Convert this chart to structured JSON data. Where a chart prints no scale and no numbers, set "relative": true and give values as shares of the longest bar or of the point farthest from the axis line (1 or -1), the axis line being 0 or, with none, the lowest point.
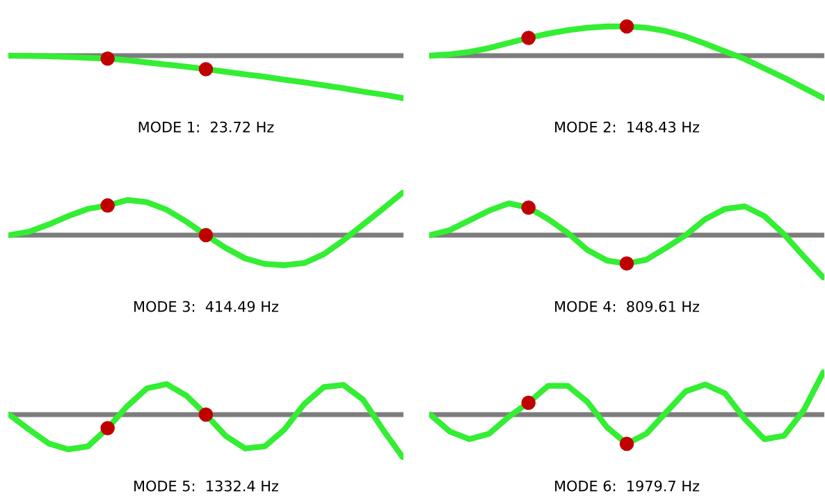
{
  "chart_data": [
    {
      "type": "line",
      "relative": true,
      "xlabel": "MODE 1:  23.72 Hz",
      "categories": [
        null,
        null,
        null,
        null,
        null,
        null,
        null,
        null,
        null,
        null,
        null,
        null,
        null,
        null,
        null,
        null,
        null,
        null,
        null,
        null,
        null
      ],
      "series": [
        {
          "color": "#33ee33",
          "values": [
            0,
            -0.005,
            -0.015,
            -0.03,
            -0.05,
            -0.07,
            -0.11,
            -0.16,
            -0.21,
            -0.26,
            -0.32,
            -0.38,
            -0.44,
            -0.5,
            -0.57,
            -0.63,
            -0.7,
            -0.77,
            -0.85,
            -0.92,
            -1
          ]
        }
      ]
    },
    {
      "type": "line",
      "relative": true,
      "xlabel": "MODE 2:  148.43 Hz",
      "categories": [
        null,
        null,
        null,
        null,
        null,
        null,
        null,
        null,
        null,
        null,
        null,
        null,
        null,
        null,
        null,
        null,
        null,
        null,
        null,
        null,
        null
      ],
      "series": [
        {
          "color": "#33ee33",
          "values": [
            0,
            0.03,
            0.09,
            0.18,
            0.3,
            0.42,
            0.52,
            0.6,
            0.66,
            0.69,
            0.69,
            0.66,
            0.58,
            0.45,
            0.28,
            0.1,
            -0.08,
            -0.3,
            -0.52,
            -0.76,
            -1
          ]
        }
      ]
    },
    {
      "type": "line",
      "relative": true,
      "xlabel": "MODE 3:  414.49 Hz",
      "categories": [
        null,
        null,
        null,
        null,
        null,
        null,
        null,
        null,
        null,
        null,
        null,
        null,
        null,
        null,
        null,
        null,
        null,
        null,
        null,
        null,
        null
      ],
      "series": [
        {
          "color": "#33ee33",
          "values": [
            0,
            0.08,
            0.25,
            0.45,
            0.62,
            0.7,
            0.83,
            0.78,
            0.6,
            0.32,
            0,
            -0.3,
            -0.55,
            -0.68,
            -0.71,
            -0.66,
            -0.45,
            -0.12,
            0.25,
            0.62,
            1
          ]
        }
      ]
    },
    {
      "type": "line",
      "relative": true,
      "xlabel": "MODE 4:  809.61 Hz",
      "categories": [
        null,
        null,
        null,
        null,
        null,
        null,
        null,
        null,
        null,
        null,
        null,
        null,
        null,
        null,
        null,
        null,
        null,
        null,
        null,
        null,
        null
      ],
      "series": [
        {
          "color": "#33ee33",
          "values": [
            0,
            0.12,
            0.35,
            0.58,
            0.75,
            0.65,
            0.38,
            0.05,
            -0.35,
            -0.6,
            -0.67,
            -0.58,
            -0.3,
            0,
            0.38,
            0.62,
            0.68,
            0.45,
            0.02,
            -0.5,
            -1
          ]
        }
      ]
    },
    {
      "type": "line",
      "relative": true,
      "xlabel": "MODE 5:  1332.4 Hz",
      "categories": [
        null,
        null,
        null,
        null,
        null,
        null,
        null,
        null,
        null,
        null,
        null,
        null,
        null,
        null,
        null,
        null,
        null,
        null,
        null,
        null,
        null
      ],
      "series": [
        {
          "color": "#33ee33",
          "values": [
            0,
            -0.35,
            -0.68,
            -0.82,
            -0.75,
            -0.32,
            0.2,
            0.62,
            0.72,
            0.45,
            0,
            -0.5,
            -0.8,
            -0.75,
            -0.35,
            0.25,
            0.65,
            0.7,
            0.35,
            -0.35,
            -1
          ]
        }
      ]
    },
    {
      "type": "line",
      "relative": true,
      "xlabel": "MODE 6:  1979.7 Hz",
      "categories": [
        null,
        null,
        null,
        null,
        null,
        null,
        null,
        null,
        null,
        null,
        null,
        null,
        null,
        null,
        null,
        null,
        null,
        null,
        null,
        null,
        null
      ],
      "series": [
        {
          "color": "#33ee33",
          "values": [
            0,
            -0.4,
            -0.58,
            -0.45,
            -0.05,
            0.28,
            0.68,
            0.68,
            0.3,
            -0.3,
            -0.69,
            -0.45,
            0.05,
            0.55,
            0.71,
            0.5,
            -0.1,
            -0.58,
            -0.5,
            0.1,
            1
          ]
        }
      ]
    }
  ]
}
